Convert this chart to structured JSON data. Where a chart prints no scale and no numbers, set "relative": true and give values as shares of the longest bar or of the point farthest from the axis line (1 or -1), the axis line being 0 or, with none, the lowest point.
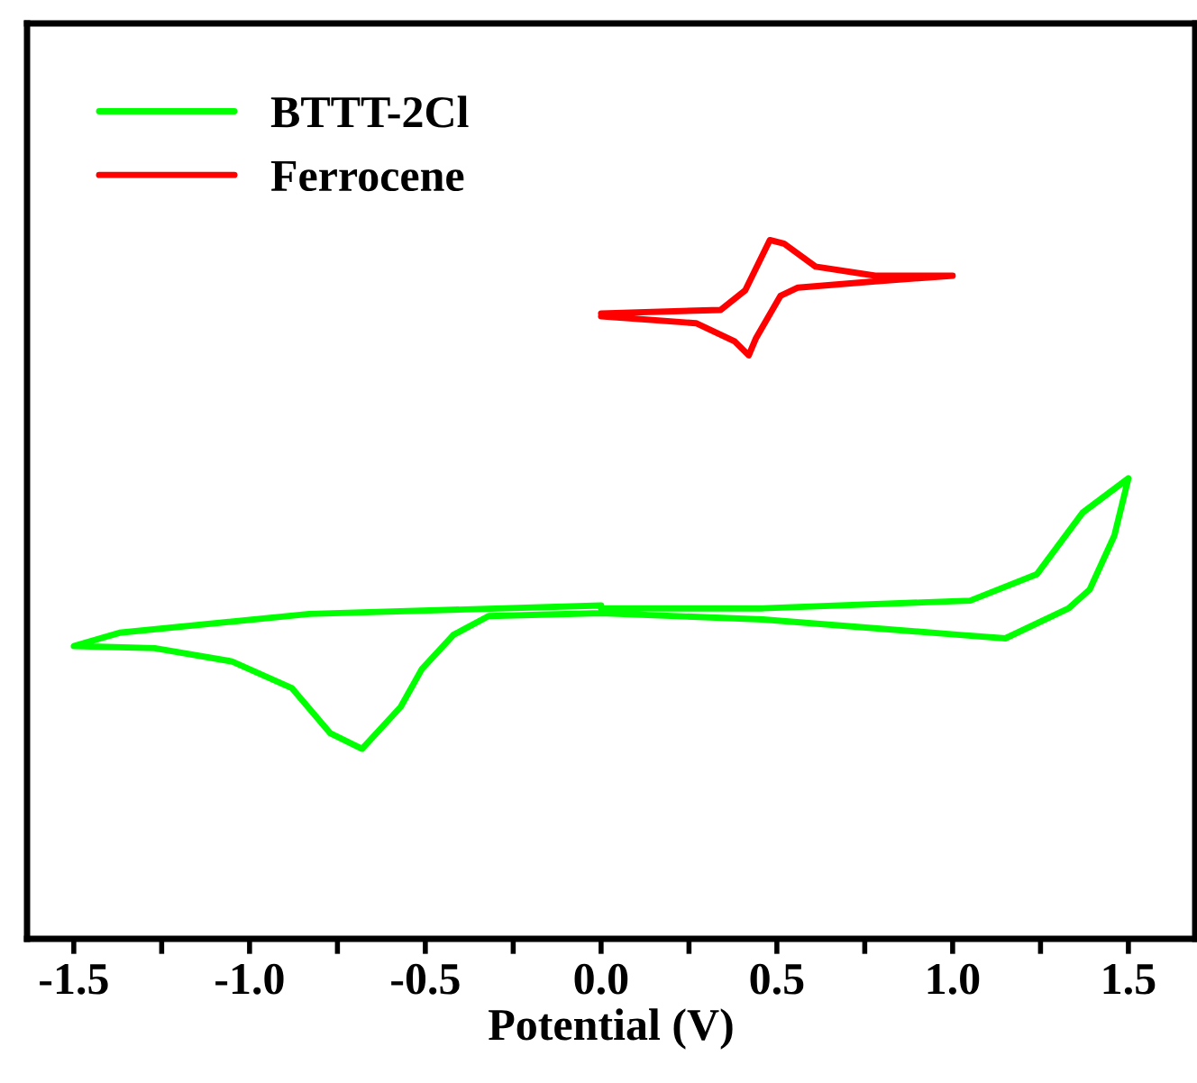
{
  "chart_data": {
    "type": "line",
    "xlabel": "Potential (V)",
    "relative": true,
    "xlim": [
      -1.633,
      1.69
    ],
    "xticks": [
      -1.5,
      {
        "value": -1.25,
        "label": null
      },
      {
        "value": -1.0,
        "label": "-1.0"
      },
      {
        "value": -0.75,
        "label": null
      },
      -0.5,
      {
        "value": -0.25,
        "label": null
      },
      {
        "value": 0.0,
        "label": "0.0"
      },
      {
        "value": 0.25,
        "label": null
      },
      0.5,
      {
        "value": 0.75,
        "label": null
      },
      {
        "value": 1.0,
        "label": "1.0"
      },
      {
        "value": 1.25,
        "label": null
      },
      1.5
    ],
    "legend": "top left",
    "grid": false,
    "marker": "none",
    "line_style": "solid",
    "series": [
      {
        "name": "BTTT-2Cl",
        "color": "#00ff00",
        "x": [
          0.0,
          0.46,
          1.05,
          1.24,
          1.37,
          1.5,
          1.46,
          1.39,
          1.33,
          1.15,
          1.02,
          0.46,
          0.0,
          -0.32,
          -0.42,
          -0.51,
          -0.57,
          -0.68,
          -0.77,
          -0.88,
          -1.05,
          -1.27,
          -1.5,
          -1.37,
          -0.83,
          0.0
        ],
        "values": [
          0.473,
          0.473,
          0.484,
          0.522,
          0.61,
          0.659,
          0.577,
          0.5,
          0.473,
          0.43,
          0.435,
          0.457,
          0.466,
          0.462,
          0.435,
          0.386,
          0.332,
          0.272,
          0.294,
          0.359,
          0.397,
          0.416,
          0.419,
          0.438,
          0.465,
          0.477
        ]
      },
      {
        "name": "Ferrocene",
        "color": "#ff0000",
        "x": [
          0.0,
          0.34,
          0.41,
          0.48,
          0.52,
          0.61,
          0.78,
          1.0,
          0.78,
          0.56,
          0.51,
          0.44,
          0.42,
          0.38,
          0.27,
          0.0
        ],
        "values": [
          0.895,
          0.9,
          0.928,
          1.0,
          0.995,
          0.962,
          0.949,
          0.949,
          0.941,
          0.932,
          0.92,
          0.859,
          0.835,
          0.855,
          0.881,
          0.891
        ]
      }
    ]
  }
}
